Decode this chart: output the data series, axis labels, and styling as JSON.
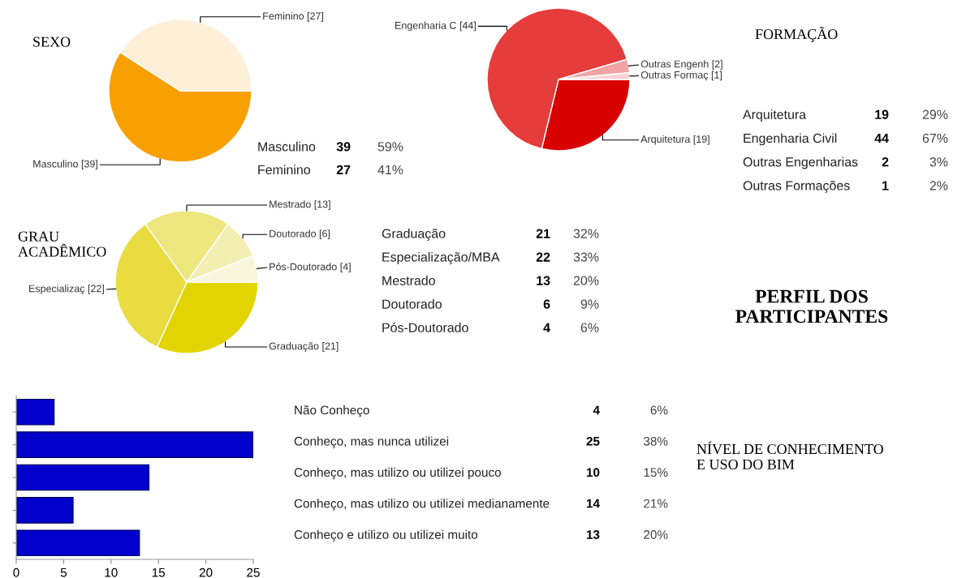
{
  "chart_data": [
    {
      "type": "pie",
      "title": "SEXO",
      "categories": [
        "Masculino [39]",
        "Feminino [27]"
      ],
      "values": [
        39,
        27
      ],
      "colors": [
        "#f7a000",
        "#fdefd8"
      ]
    },
    {
      "type": "other",
      "annotations": [
        "Masculino",
        "39",
        "59%",
        "Feminino",
        "27",
        "41%"
      ]
    },
    {
      "type": "pie",
      "title": "FORMAÇÃO",
      "categories": [
        "Arquitetura [19]",
        "Engenharia C [44]",
        "Outras Engenh [2]",
        "Outras Formaç [1]"
      ],
      "values": [
        19,
        44,
        2,
        1
      ],
      "colors": [
        "#d90000",
        "#e53c3c",
        "#f0a4a4",
        "#f8d4d4"
      ]
    },
    {
      "type": "other",
      "annotations": [
        "Arquitetura",
        "19",
        "29%",
        "Engenharia Civil",
        "44",
        "67%",
        "Outras Engenharias",
        "2",
        "3%",
        "Outras Formações",
        "1",
        "2%"
      ]
    },
    {
      "type": "pie",
      "title": "GRAU\nACADÊMICO",
      "categories": [
        "Graduação [21]",
        "Especializaç [22]",
        "Mestrado [13]",
        "Doutorado [6]",
        "Pós-Doutorado [4]"
      ],
      "values": [
        21,
        22,
        13,
        6,
        4
      ],
      "colors": [
        "#e2d400",
        "#e8dc40",
        "#eee67e",
        "#f3efb2",
        "#f9f6de"
      ]
    },
    {
      "type": "other",
      "annotations": [
        "Graduação",
        "21",
        "32%",
        "Especialização/MBA",
        "22",
        "33%",
        "Mestrado",
        "13",
        "20%",
        "Doutorado",
        "6",
        "9%",
        "Pós-Doutorado",
        "4",
        "6%"
      ]
    },
    {
      "type": "other",
      "title": "PERFIL DOS\nPARTICIPANTES"
    },
    {
      "type": "bar",
      "orientation": "horizontal",
      "categories": [
        null,
        null,
        null,
        null,
        null
      ],
      "values": [
        4,
        25,
        14,
        6,
        13
      ],
      "color": "#0000cc",
      "xlim": [
        0,
        25
      ],
      "xticks": [
        0,
        5,
        10,
        15,
        20,
        25
      ],
      "tick_labels": "x",
      "grid": false
    },
    {
      "type": "other",
      "title": "NÍVEL DE CONHECIMENTO\nE USO DO BIM",
      "annotations": [
        "Não Conheço",
        "4",
        "6%",
        "Conheço, mas nunca utilizei",
        "25",
        "38%",
        "Conheço, mas utilizo ou utilizei pouco",
        "10",
        "15%",
        "Conheço, mas utilizo ou utilizei medianamente",
        "14",
        "21%",
        "Conheço e utilizo ou utilizei muito",
        "13",
        "20%"
      ]
    }
  ]
}
